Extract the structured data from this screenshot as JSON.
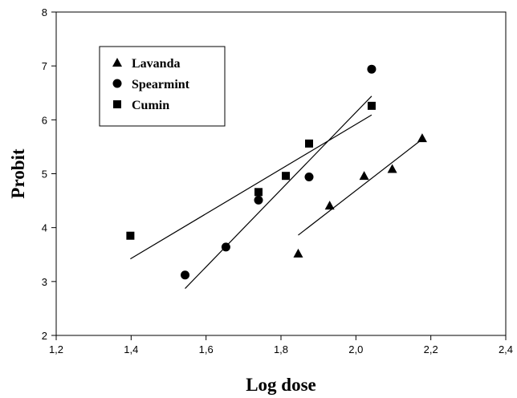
{
  "chart_data": {
    "type": "scatter",
    "xlabel": "Log dose",
    "ylabel": "Probit",
    "xlim": [
      1.2,
      2.4
    ],
    "ylim": [
      2,
      8
    ],
    "x_ticks": [
      "1,2",
      "1,4",
      "1,6",
      "1,8",
      "2,0",
      "2,2",
      "2,4"
    ],
    "y_ticks": [
      "2",
      "3",
      "4",
      "5",
      "6",
      "7",
      "8"
    ],
    "grid": false,
    "legend_position": "top-left",
    "series": [
      {
        "name": "Lavanda",
        "marker": "triangle",
        "points": [
          [
            1.846,
            3.52
          ],
          [
            1.93,
            4.41
          ],
          [
            2.022,
            4.96
          ],
          [
            2.097,
            5.09
          ],
          [
            2.177,
            5.66
          ]
        ],
        "fit": [
          [
            1.846,
            3.86
          ],
          [
            2.177,
            5.64
          ]
        ]
      },
      {
        "name": "Spearmint",
        "marker": "circle",
        "points": [
          [
            1.544,
            3.12
          ],
          [
            1.653,
            3.64
          ],
          [
            1.74,
            4.51
          ],
          [
            1.875,
            4.94
          ],
          [
            2.042,
            6.94
          ]
        ],
        "fit": [
          [
            1.544,
            2.87
          ],
          [
            2.042,
            6.44
          ]
        ]
      },
      {
        "name": "Cumin",
        "marker": "square",
        "points": [
          [
            1.398,
            3.85
          ],
          [
            1.74,
            4.66
          ],
          [
            1.813,
            4.96
          ],
          [
            1.875,
            5.56
          ],
          [
            2.042,
            6.26
          ]
        ],
        "fit": [
          [
            1.398,
            3.42
          ],
          [
            2.042,
            6.09
          ]
        ]
      }
    ],
    "colors": {
      "marker": "#000000",
      "line": "#000000",
      "axis": "#000000"
    }
  }
}
